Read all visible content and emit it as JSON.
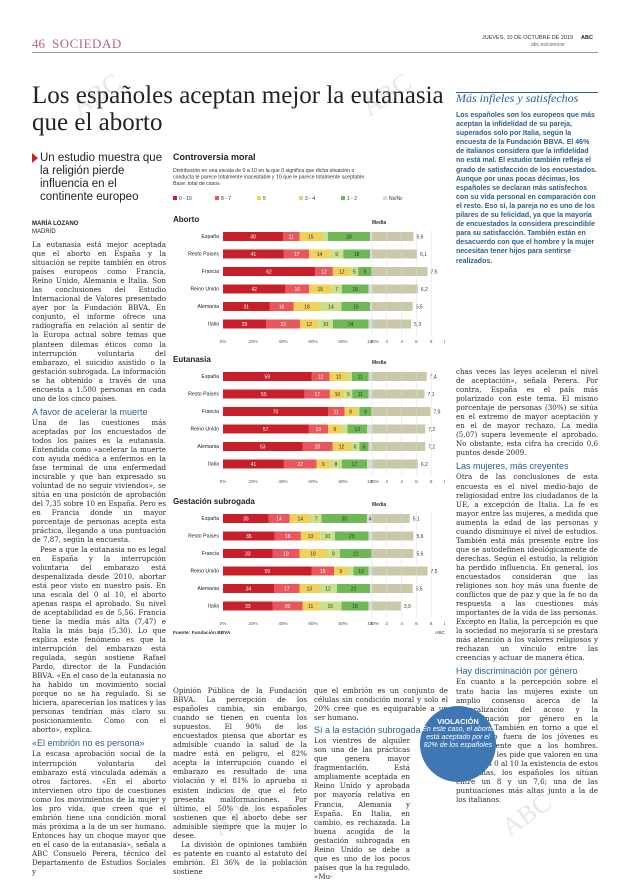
{
  "header": {
    "page": "46",
    "section": "SOCIEDAD",
    "date": "JUEVES, 10 DE OCTUBRE DE 2019",
    "brand": "ABC",
    "url": "abc.es/conocer"
  },
  "article": {
    "headline": "Los españoles aceptan mejor la eutanasia que el aborto",
    "subhead": "Un estudio muestra que la religión pierde influencia en el continente europeo",
    "author": "MARÍA LOZANO",
    "place": "MADRID"
  },
  "col1": {
    "p1": "La eutanasia está mejor aceptada que el aborto en España y la situación se repite también en otros países europeos como Francia, Reino Unido, Alemania e Italia. Son las conclusiones del Estudio Internacional de Valores presentado ayer por la Fundación BBVA. En conjunto, el informe ofrece una radiografía en relación al sentir de la Europa actual sobre temas que planteen dilemas éticos como la interrupción voluntaria del embarazo, el suicidio asistido o la gestación subrogada. La información se ha obtenido a través de una encuesta a 1.500 personas en cada uno de los cinco países.",
    "h1": "A favor de acelerar la muerte",
    "p2": "Una de las cuestiones más aceptadas por los encuestados de todos los países es la eutanasia. Entendida como «acelerar la muerte con ayuda médica a enfermos en la fase terminal de una enfermedad incurable y que han expresado su voluntad de no seguir viviendos», se sitúa en una posición de aprobación del 7,35 sobre 10 en España. Pero es en Francia donde un mayor porcentaje de personas acepta esta práctica, llegando a una puntuación de 7,87, según la encuesta.",
    "p3": "Pese a que la eutanasia no es legal en España y la interrupción voluntaria del embarazo está despenalizada desde 2010, abortar está peor visto en nuestro país. En una escala del 0 al 10, el aborto apenas raspa el aprobado. Su nivel de aceptabilidad es de 5,56. Francia tiene la media más alta (7,47) e Italia la más baja (5,30). Lo que explica este fenómeno es que la interrupción del embarazo está regulada, según sostiene Rafael Pardo, director de la Fundación BBVA. «En el caso de la eutanasia no ha habido un movimiento social porque no se ha regulado. Si se hiciera, aparecerían los matices y las personas tendrían más claro su posicionamiento. Como con el aborto», explica.",
    "h2": "«El embrión no es persona»",
    "p4": "La escasa aprobación social de la interrupción voluntaria del embarazo está vinculada además a otros factores. «En el aborto intervienen otro tipo de cuestiones como los movimientos de la mujer y los pro vida, que creen que el embrión tiene una condición moral más próxima a la de un ser humano. Entonces hay un choque mayor que en el caso de la eutanasia», señala a ABC Consuelo Perera, técnico del Departamento de Estudios Sociales y"
  },
  "col2": {
    "p1": "Opinión Pública de la Fundación BBVA. La percepción de los españoles cambia, sin embargo, cuando se tienen en cuenta los supuestos. El 90% de los encuestados piensa que abortar es admisible cuando la salud de la madre está en peligro, el 82% acepta la interrupción cuando el embarazo es resultado de una violación y el 81% lo aprueba si existen indicios de que el feto presenta malformaciones. Por último, el 50% de los españoles sostienen que el aborto debe ser admisible siempre que la mujer lo desee.",
    "p2": "La división de opiniones también es patente en cuanto al estatuto del embrión. El 36% de la población sostiene"
  },
  "col3": {
    "p1": "que el embrión es un conjunto de células sin condición moral y solo el 20% cree que es equiparable a un ser humano.",
    "h1": "Sí a la estación subrogada",
    "p2": "Los vientres de alquiler son una de las prácticas que genera mayor fragmentación. Está ampliamente aceptada en Reino Unido y aprobada por mayoría relativa en Francia, Alemania y España. En Italia, en cambio, es rechazada. La buena acogida de la gestación subrogada en Reino Unido se debe a que es uno de los pocos países que la ha regulado. «Mu-"
  },
  "col4": {
    "p1": "chas veces las leyes aceleran el nivel de aceptación», señala Perera. Por contra, España es el país más polarizado con este tema. El mismo porcentaje de personas (30%) se sitúa en el extremo de mayor aceptación y en el de mayor rechazo. La media (5,07) supera levemente el aprobado. No obstante, esta cifra ha crecido 0,6 puntos desde 2009.",
    "h1": "Las mujeres, más creyentes",
    "p2": "Otra de las conclusiones de esta encuesta es el nivel medio-bajo de religiosidad entre los ciudadanos de la UE, a excepción de Italia. La fe es mayor entre las mujeres, a medida que aumenta la edad de las personas y cuando disminuye el nivel de estudios. También está más presente entre los que se autodefinen ideológicamente de derechas. Según el estudio, la religión ha perdido influencia. En general, los encuestados consideran que las religiones son hoy más una fuente de conflictos que de paz y que la fe no da respuesta a las cuestiones más importantes de la vida de las personas. Excepto en Italia, la percepción es que la sociedad no mejoraría si se prestara más atención a los valores religiosos y rechazan un vínculo entre las creencias y actuar de manera ética.",
    "h2": "Hay discriminación por género",
    "p3": "En cuanto a la percepción sobre el trato hacia las mujeres existe un amplio consenso acerca de la generalización del acoso y la discriminación por género en la sociedad. También en torno a que el matrimonio fuera de los jóvenes es más frecuente que a los hombres. Cuando se les pide que valoren en una escala del 0 al 10 la existencia de estos problemas, los españoles los sitúan entre un 8 y un 7,6; una de las puntuaciones más altas junto a la de los italianos."
  },
  "sidebar": {
    "title": "Más infieles y satisfechos",
    "body": "Los españoles son los europeos que más aceptan la infidelidad de su pareja, superados solo por Italia, según la encuesta de la Fundación BBVA. El 46% de italianos considera que la infidelidad no está mal. El estudio también refleja el grado de satisfacción de los encuestados. Aunque por unas pocas décimas, los españoles se declaran más satisfechos con su vida personal en comparación con el resto. Eso sí, la pareja no es uno de los pilares de su felicidad, ya que la mayoría de encuestados la considera prescindible para su satisfacción. También están en desacuerdo con que el hombre y la mujer necesitan tener hijos para sentirse realizados."
  },
  "callout": {
    "title": "VIOLACIÓN",
    "text": "En este caso, el aborto está aceptado por el 82% de los españoles"
  },
  "colors": {
    "c0": "#c8202a",
    "c1": "#e8575b",
    "c2": "#f2d15a",
    "c3": "#cbe08a",
    "c4": "#6fb855",
    "c5": "#d9d9d9",
    "accent": "#2d5f8e",
    "media": "#c9c8a8"
  },
  "chart_data": {
    "type": "bar",
    "title": "Controversia moral",
    "subtitle": "Distribución en una escala de 0 a 10 en la que 0 significa que dicha situación o conducta le parece totalmente inaceptable y 10 que le parece totalmente aceptable. Base: total de casos",
    "legend": [
      "0 - 10",
      "8 - 7",
      "5",
      "3 - 4",
      "1 - 2",
      "Ns/Nc"
    ],
    "source": "Fuente: Fundación BBVA",
    "credit": "ABC",
    "media_label": "Media",
    "axis_pct": [
      "0%",
      "20%",
      "40%",
      "60%",
      "80%",
      "100%"
    ],
    "axis_media": [
      "0",
      "2",
      "4",
      "6",
      "8",
      "10"
    ],
    "panels": [
      {
        "name": "Aborto",
        "rows": [
          {
            "c": "España",
            "v": [
              40,
              11,
              15,
              4,
              28,
              2
            ],
            "m": 5.6
          },
          {
            "c": "Resto Países",
            "v": [
              41,
              17,
              14,
              9,
              18,
              2
            ],
            "m": 6.1
          },
          {
            "c": "Francia",
            "v": [
              62,
              12,
              12,
              5,
              9,
              1
            ],
            "m": 7.5
          },
          {
            "c": "Reino Unido",
            "v": [
              42,
              16,
              15,
              7,
              18,
              3
            ],
            "m": 6.2
          },
          {
            "c": "Alemania",
            "v": [
              31,
              16,
              18,
              14,
              19,
              2
            ],
            "m": 5.5
          },
          {
            "c": "Italia",
            "v": [
              29,
              23,
              12,
              10,
              24,
              3
            ],
            "m": 5.3
          }
        ]
      },
      {
        "name": "Eutanasia",
        "rows": [
          {
            "c": "España",
            "v": [
              59,
              12,
              12,
              3,
              11,
              3
            ],
            "m": 7.4
          },
          {
            "c": "Resto Países",
            "v": [
              55,
              17,
              10,
              5,
              11,
              3
            ],
            "m": 7.1
          },
          {
            "c": "Francia",
            "v": [
              70,
              11,
              8,
              2,
              8,
              1
            ],
            "m": 7.9
          },
          {
            "c": "Reino Unido",
            "v": [
              57,
              13,
              9,
              4,
              13,
              4
            ],
            "m": 7.2
          },
          {
            "c": "Alemania",
            "v": [
              53,
              20,
              12,
              6,
              6,
              3
            ],
            "m": 7.2
          },
          {
            "c": "Italia",
            "v": [
              41,
              22,
              9,
              8,
              17,
              4
            ],
            "m": 6.2
          }
        ]
      },
      {
        "name": "Gestación subrogada",
        "rows": [
          {
            "c": "España",
            "v": [
              30,
              14,
              14,
              7,
              30,
              4
            ],
            "m": 5.1
          },
          {
            "c": "Resto Países",
            "v": [
              35,
              18,
              13,
              10,
              23,
              3
            ],
            "m": 5.6
          },
          {
            "c": "Francia",
            "v": [
              33,
              18,
              18,
              9,
              21,
              1
            ],
            "m": 5.6
          },
          {
            "c": "Reino Unido",
            "v": [
              59,
              15,
              9,
              4,
              10,
              3
            ],
            "m": 7.5
          },
          {
            "c": "Alemania",
            "v": [
              34,
              17,
              13,
              12,
              22,
              2
            ],
            "m": 5.5
          },
          {
            "c": "Italia",
            "v": [
              33,
              20,
              11,
              15,
              18,
              3
            ],
            "m": 3.9
          }
        ]
      }
    ]
  }
}
